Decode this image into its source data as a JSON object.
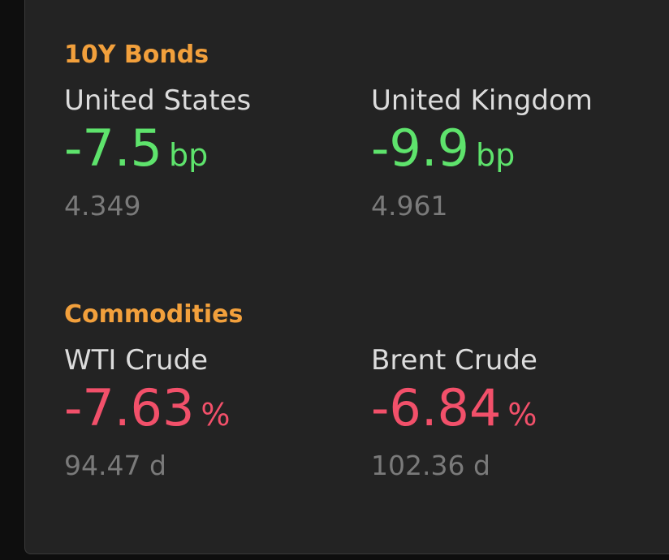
{
  "sections": [
    {
      "title": "10Y Bonds",
      "items": [
        {
          "name": "United States",
          "change": "-7.5",
          "unit": "bp",
          "price": "4.349",
          "direction": "up"
        },
        {
          "name": "United Kingdom",
          "change": "-9.9",
          "unit": "bp",
          "price": "4.961",
          "direction": "up"
        }
      ]
    },
    {
      "title": "Commodities",
      "items": [
        {
          "name": "WTI Crude",
          "change": "-7.63",
          "unit": "%",
          "price": "94.47 d",
          "direction": "down"
        },
        {
          "name": "Brent Crude",
          "change": "-6.84",
          "unit": "%",
          "price": "102.36 d",
          "direction": "down"
        }
      ]
    }
  ]
}
